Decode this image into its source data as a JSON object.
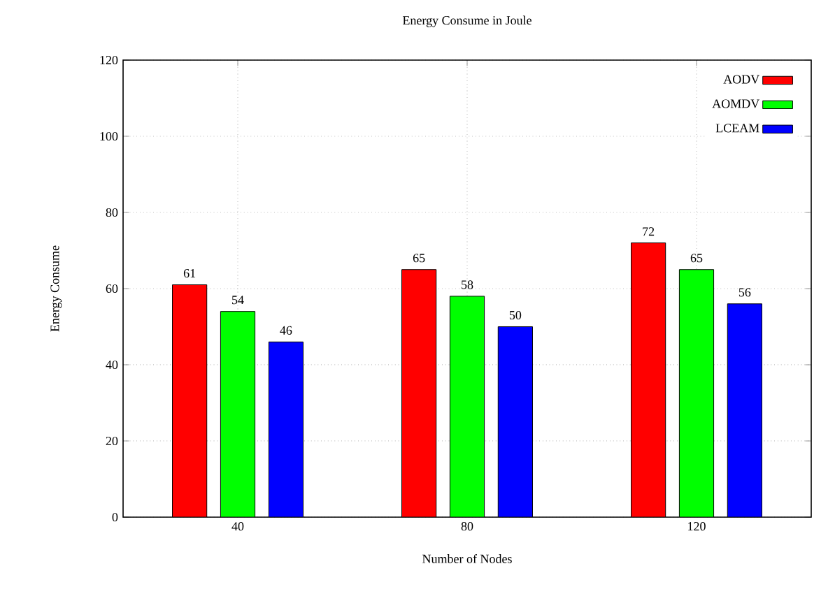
{
  "chart_data": {
    "type": "bar",
    "title": "Energy Consume in Joule",
    "xlabel": "Number of Nodes",
    "ylabel": "Energy Consume",
    "categories": [
      "40",
      "80",
      "120"
    ],
    "series": [
      {
        "name": "AODV",
        "color": "#ff0000",
        "values": [
          61,
          65,
          72
        ]
      },
      {
        "name": "AOMDV",
        "color": "#00ff00",
        "values": [
          54,
          58,
          65
        ]
      },
      {
        "name": "LCEAM",
        "color": "#0000ff",
        "values": [
          46,
          50,
          56
        ]
      }
    ],
    "ylim": [
      0,
      120
    ],
    "yticks": [
      0,
      20,
      40,
      60,
      80,
      100,
      120
    ],
    "grid": true,
    "legend": "top right",
    "data_labels": true
  }
}
